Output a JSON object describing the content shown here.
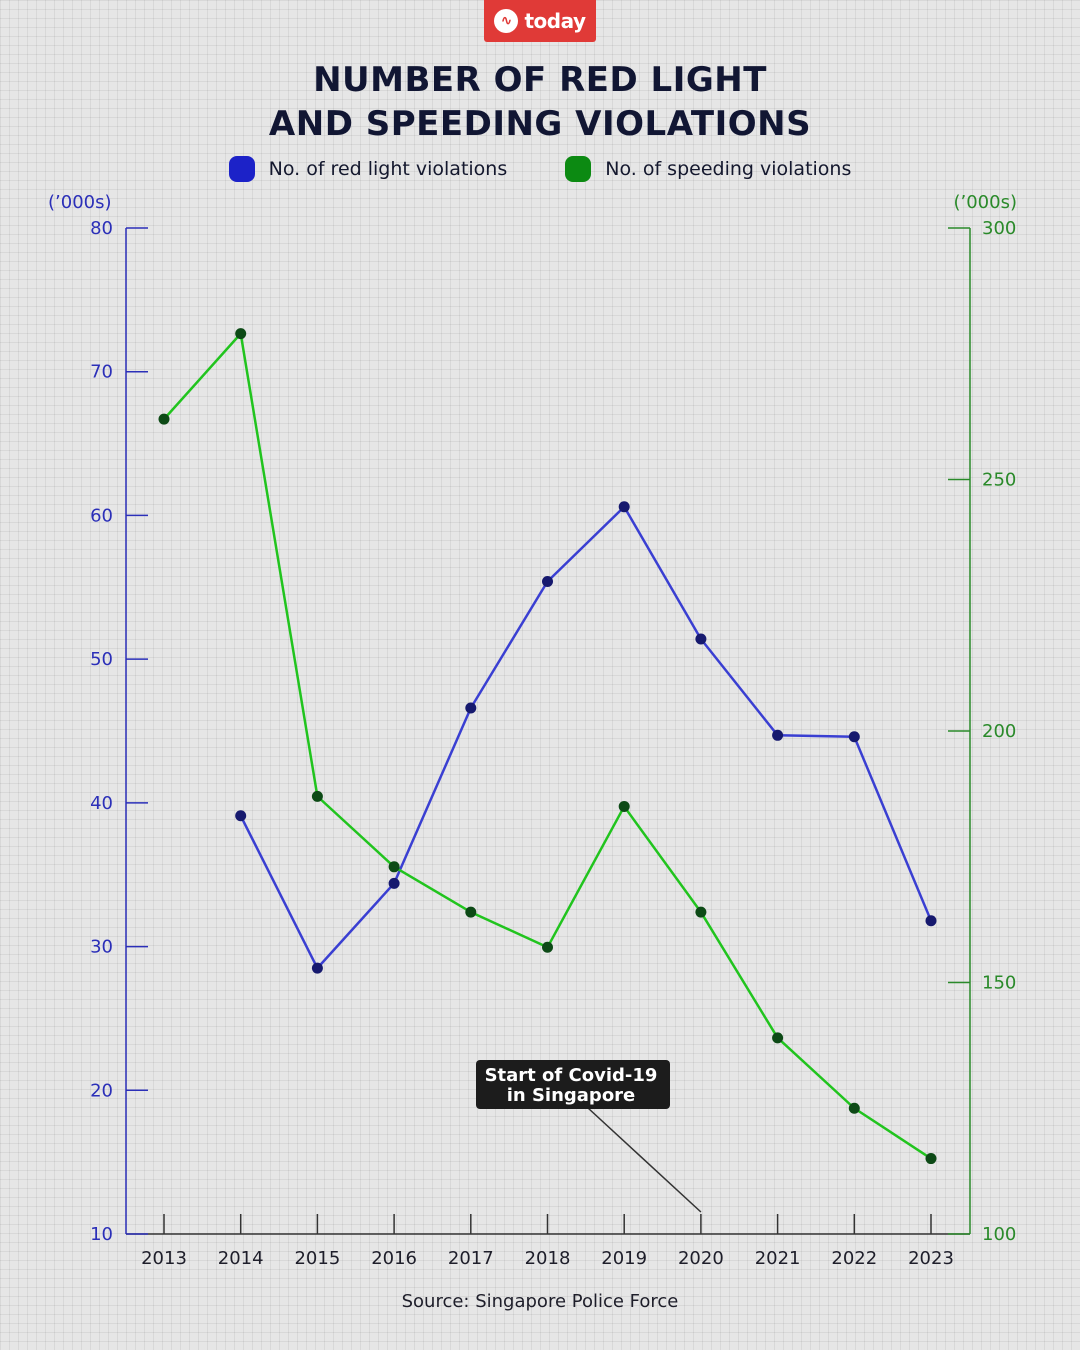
{
  "brand": {
    "name": "today"
  },
  "title": {
    "line1": "NUMBER OF RED LIGHT",
    "line2": "AND SPEEDING VIOLATIONS"
  },
  "source": "Source: Singapore Police Force",
  "colors": {
    "red_light": "#3a3fd2",
    "red_light_point": "#16196e",
    "speeding": "#21c41e",
    "speeding_point": "#0d4a16",
    "left_axis": "#2b2fb8",
    "right_axis": "#2a8a2a",
    "brand": "#e03a37"
  },
  "chart_data": {
    "type": "line",
    "categories": [
      "2013",
      "2014",
      "2015",
      "2016",
      "2017",
      "2018",
      "2019",
      "2020",
      "2021",
      "2022",
      "2023"
    ],
    "series": [
      {
        "name": "No. of red light violations",
        "axis": "left",
        "values": [
          null,
          39.1,
          28.5,
          34.4,
          46.6,
          55.4,
          60.6,
          51.4,
          44.7,
          44.6,
          31.8
        ]
      },
      {
        "name": "No. of speeding violations",
        "axis": "right",
        "values": [
          262,
          279,
          187,
          173,
          164,
          157,
          185,
          164,
          139,
          125,
          115
        ]
      }
    ],
    "left_axis": {
      "label": "(’000s)",
      "ylim": [
        10,
        80
      ],
      "ticks": [
        10,
        20,
        30,
        40,
        50,
        60,
        70,
        80
      ]
    },
    "right_axis": {
      "label": "(’000s)",
      "ylim": [
        100,
        300
      ],
      "ticks": [
        100,
        150,
        200,
        250,
        300
      ]
    },
    "annotations": [
      {
        "text_line1": "Start of Covid-19",
        "text_line2": "in Singapore",
        "category": "2020"
      }
    ],
    "legend_position": "top-center",
    "grid": false
  }
}
